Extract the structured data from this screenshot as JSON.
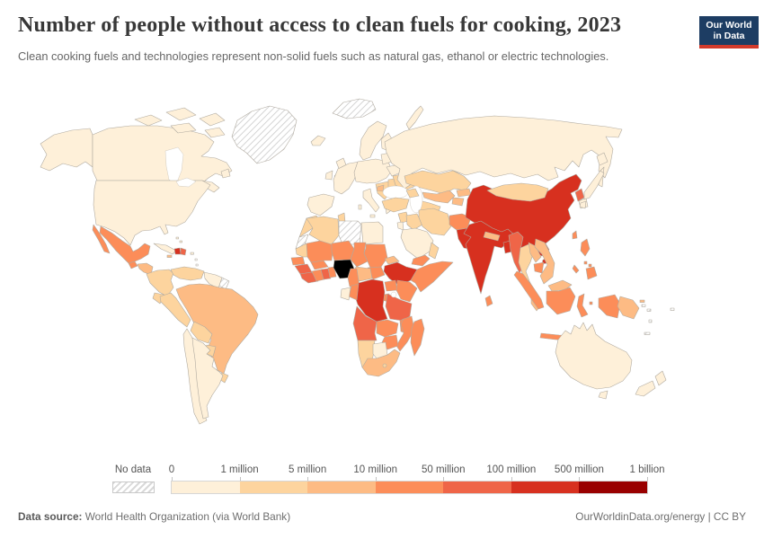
{
  "chart_data": {
    "type": "heatmap",
    "subtype": "world-choropleth",
    "title": "Number of people without access to clean fuels for cooking, 2023",
    "subtitle": "Clean cooking fuels and technologies represent non-solid fuels such as natural gas, ethanol or electric technologies.",
    "legend_position": "bottom",
    "unit_bins": {
      "no_data_label": "No data",
      "tick_labels": [
        "0",
        "1 million",
        "5 million",
        "10 million",
        "50 million",
        "100 million",
        "500 million",
        "1 billion"
      ],
      "colors": [
        "#fef0d9",
        "#fdd49e",
        "#fdbb84",
        "#fc8d59",
        "#ef6548",
        "#d7301f",
        "#990000"
      ]
    },
    "country_bins": {
      "usa": 0,
      "canada": 0,
      "greenland": "nd",
      "iceland": 0,
      "mexico": 3,
      "guatemala": 3,
      "honduras-nicaragua": 2,
      "costarica-panama": 1,
      "cuba": 0,
      "haiti": 5,
      "dominican-republic": 4,
      "jamaica": 2,
      "puerto-rico": 0,
      "bahamas": 0,
      "lesser-antilles": "nd",
      "colombia": 1,
      "venezuela": 1,
      "guyana-suriname": 0,
      "french-guiana": "nd",
      "ecuador": 1,
      "peru": 1,
      "brazil": 2,
      "bolivia": 1,
      "paraguay": 1,
      "uruguay": 1,
      "chile": 0,
      "argentina": 0,
      "uk": 0,
      "ireland": 0,
      "scandinavia": 0,
      "finland": 0,
      "denmark": 0,
      "western-europe": 0,
      "iberia": 0,
      "italy": 0,
      "central-europe": 0,
      "balkans": 1,
      "bosnia": 2,
      "greece": 0,
      "romania-bulgaria": 1,
      "ukraine": 1,
      "belarus": 0,
      "baltics": 0,
      "russia": 0,
      "novaya-zemlya": 0,
      "svalbard": "nd",
      "sakhalin": 0,
      "morocco": 1,
      "western-sahara": "nd",
      "algeria": 1,
      "tunisia": 1,
      "libya": "nd",
      "egypt": 0,
      "mauritania": 1,
      "senegal": 3,
      "guinea": 4,
      "sierra-leone-liberia": 4,
      "ivory-coast": 3,
      "ghana": 4,
      "togo-benin": 3,
      "burkina-faso": 3,
      "mali": 3,
      "niger": 3,
      "chad": 3,
      "sudan": 3,
      "south-sudan": 3,
      "eritrea": 2,
      "ethiopia": 5,
      "somalia": 3,
      "kenya": 3,
      "uganda": 3,
      "rwanda-burundi": 3,
      "drc": 5,
      "congo": 3,
      "gabon": 0,
      "cameroon": 3,
      "car": 2,
      "tanzania": 4,
      "angola": 4,
      "zambia": 3,
      "malawi": 3,
      "mozambique": 3,
      "zimbabwe": 3,
      "namibia": 1,
      "botswana": 0,
      "south-africa": 2,
      "lesotho": 1,
      "madagascar": 3,
      "turkey": 1,
      "caucasus": 1,
      "syria": 1,
      "israel-jordan": 0,
      "iraq": 1,
      "iran": 1,
      "saudi-arabia": 0,
      "yemen": 3,
      "oman": 1,
      "kazakhstan": 1,
      "uzbekistan": 2,
      "turkmenistan": 1,
      "kyrgyzstan": 2,
      "tajikistan": 2,
      "afghanistan": 3,
      "pakistan": 5,
      "india": 5,
      "nepal": 2,
      "bangladesh": 5,
      "sri-lanka": 3,
      "myanmar": 4,
      "thailand": 1,
      "laos": 2,
      "cambodia": 3,
      "vietnam": 2,
      "malaysia": 2,
      "china": 5,
      "mongolia": 1,
      "hainan": 5,
      "north-korea": 4,
      "south-korea": 0,
      "japan": 0,
      "taiwan": 3,
      "philippines": 3,
      "indonesia": 3,
      "papua-new-guinea": 2,
      "australia": 0,
      "new-zealand": 0,
      "fiji": "nd",
      "solomon": "nd",
      "new-caledonia": "nd",
      "vanuatu": "nd"
    }
  },
  "logo": {
    "line1": "Our World",
    "line2": "in Data"
  },
  "footer": {
    "source_label": "Data source:",
    "source_text": " World Health Organization (via World Bank)",
    "right_text": "OurWorldinData.org/energy | CC BY"
  }
}
